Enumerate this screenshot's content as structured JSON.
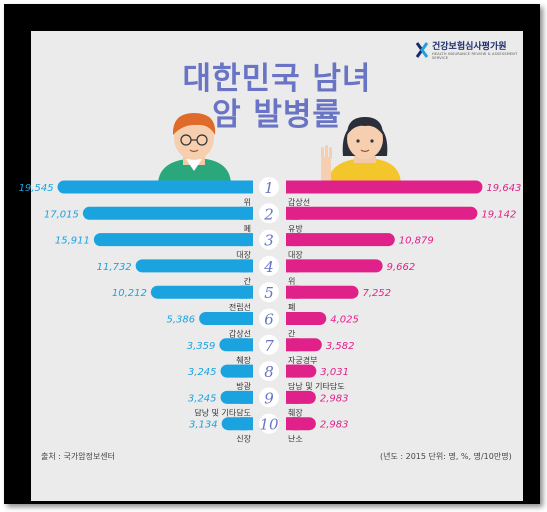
{
  "title": {
    "line1": "대한민국 남녀",
    "line2": "암 발병률"
  },
  "logo": {
    "name": "건강보험심사평가원",
    "sub": "HEALTH INSURANCE REVIEW & ASSESSMENT SERVICE"
  },
  "source": "출처 : 국가암정보센터",
  "unit_note": "(년도 : 2015  단위: 명, %, 명/10만명)",
  "colors": {
    "male": "#1aa3df",
    "female": "#e0218a",
    "rank": "#6a74c4",
    "title": "#6a74c4"
  },
  "chart_data": {
    "type": "bar",
    "ranks": [
      "1",
      "2",
      "3",
      "4",
      "5",
      "6",
      "7",
      "8",
      "9",
      "10"
    ],
    "series": [
      {
        "name": "",
        "side": "left",
        "categories": [
          "위",
          "폐",
          "대장",
          "간",
          "전립선",
          "갑상선",
          "췌장",
          "방광",
          "담낭 및 기타담도",
          "신장"
        ],
        "values": [
          19545,
          17015,
          15911,
          11732,
          10212,
          5386,
          3359,
          3245,
          3245,
          3134
        ],
        "labels": [
          "19,545",
          "17,015",
          "15,911",
          "11,732",
          "10,212",
          "5,386",
          "3,359",
          "3,245",
          "3,245",
          "3,134"
        ]
      },
      {
        "name": "",
        "side": "right",
        "categories": [
          "갑상선",
          "유방",
          "대장",
          "위",
          "폐",
          "간",
          "자궁경부",
          "담낭 및 기타담도",
          "췌장",
          "난소"
        ],
        "values": [
          19643,
          19142,
          10879,
          9662,
          7252,
          4025,
          3582,
          3031,
          2983,
          2983
        ],
        "labels": [
          "19,643",
          "19,142",
          "10,879",
          "9,662",
          "7,252",
          "4,025",
          "3,582",
          "3,031",
          "2,983",
          "2,983"
        ]
      }
    ]
  }
}
